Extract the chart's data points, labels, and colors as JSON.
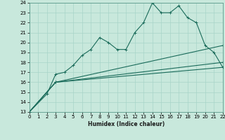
{
  "xlabel": "Humidex (Indice chaleur)",
  "xlim": [
    0,
    22
  ],
  "ylim": [
    13,
    24
  ],
  "xticks": [
    0,
    1,
    2,
    3,
    4,
    5,
    6,
    7,
    8,
    9,
    10,
    11,
    12,
    13,
    14,
    15,
    16,
    17,
    18,
    19,
    20,
    21,
    22
  ],
  "yticks": [
    13,
    14,
    15,
    16,
    17,
    18,
    19,
    20,
    21,
    22,
    23,
    24
  ],
  "bg_color": "#c8e8dc",
  "grid_color": "#a8d4c8",
  "line_color": "#1a6b5a",
  "line1_x": [
    0,
    2,
    3,
    4,
    5,
    6,
    7,
    8,
    9,
    10,
    11,
    12,
    13,
    14,
    15,
    16,
    17,
    18,
    19,
    20,
    21,
    22
  ],
  "line1_y": [
    13,
    14.8,
    16.8,
    17.0,
    17.7,
    18.7,
    19.3,
    20.5,
    20.0,
    19.3,
    19.3,
    21.0,
    22.0,
    24.0,
    23.0,
    23.0,
    23.7,
    22.5,
    22.0,
    19.7,
    19.0,
    17.5
  ],
  "line2_x": [
    0,
    3,
    22
  ],
  "line2_y": [
    13.0,
    16.0,
    17.5
  ],
  "line3_x": [
    0,
    3,
    22
  ],
  "line3_y": [
    13.0,
    16.0,
    18.0
  ],
  "line4_x": [
    0,
    3,
    22
  ],
  "line4_y": [
    13.0,
    16.0,
    19.7
  ],
  "lw": 0.8,
  "ms": 2.5,
  "tick_fontsize": 5,
  "xlabel_fontsize": 5.5
}
